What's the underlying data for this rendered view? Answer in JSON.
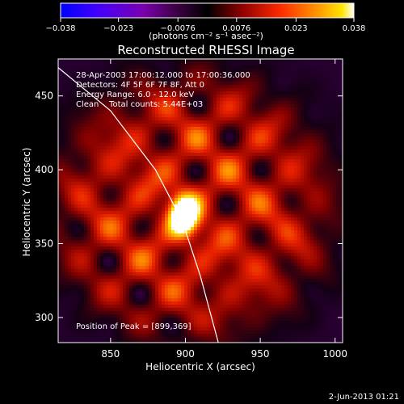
{
  "chart_data": {
    "type": "heatmap",
    "title": "Reconstructed RHESSI Image",
    "xlabel": "Heliocentric X (arcsec)",
    "ylabel": "Heliocentric Y (arcsec)",
    "xlim": [
      815,
      1005
    ],
    "ylim": [
      283,
      475
    ],
    "x_ticks": [
      850,
      900,
      950,
      1000
    ],
    "y_ticks": [
      300,
      350,
      400,
      450
    ],
    "colorbar": {
      "unit_label": "(photons cm⁻² s⁻¹ asec⁻²)",
      "range": [
        -0.038,
        0.038
      ],
      "tick_values": [
        -0.038,
        -0.023,
        -0.0076,
        0.0076,
        0.023,
        0.038
      ],
      "tick_labels": [
        "−0.038",
        "−0.023",
        "−0.0076",
        "0.0076",
        "0.023",
        "0.038"
      ]
    },
    "annotations": [
      "28-Apr-2003 17:00:12.000 to 17:00:36.000",
      "Detectors: 4F 5F 6F 7F 8F, Att 0",
      "Energy Range: 6.0 - 12.0 keV",
      "Clean    Total counts: 5.44E+03"
    ],
    "peak": {
      "x": 899,
      "y": 369,
      "label": "Position of Peak = [899,369]"
    },
    "limb": [
      [
        808,
        475
      ],
      [
        850,
        440
      ],
      [
        880,
        400
      ],
      [
        898,
        365
      ],
      [
        910,
        328
      ],
      [
        922,
        283
      ]
    ],
    "footer": "2-Jun-2013 01:21",
    "colors": {
      "background": "#000000",
      "axes": "#ffffff",
      "colormap": [
        "#0000ff",
        "#3a00ff",
        "#7000c0",
        "#500060",
        "#2a0040",
        "#000000",
        "#400000",
        "#b00000",
        "#ff3000",
        "#ff9000",
        "#ffe000",
        "#ffffff"
      ]
    }
  }
}
